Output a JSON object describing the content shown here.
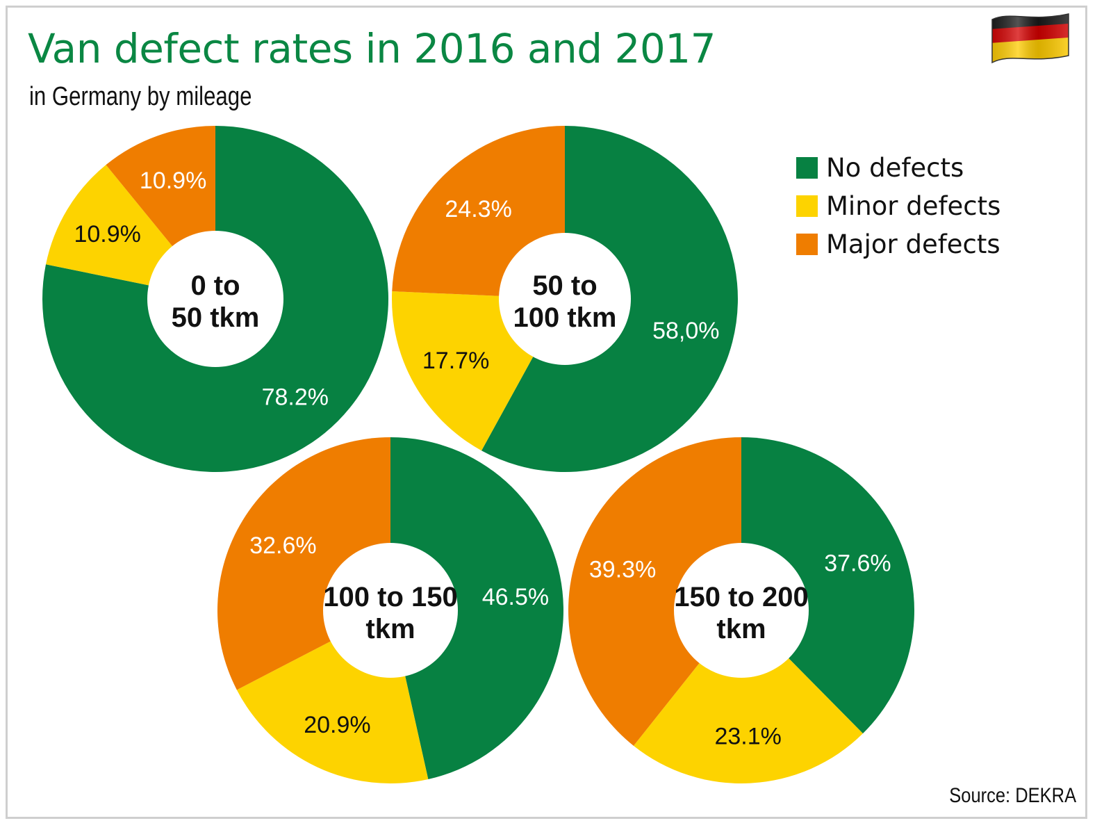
{
  "title": "Van defect rates in 2016 and 2017",
  "subtitle": "in Germany by mileage",
  "source": "Source: DEKRA",
  "flag_icon": "germany-flag-icon",
  "colors": {
    "no_defects": "#078142",
    "minor_defects": "#fdd300",
    "major_defects": "#ef7d00",
    "title": "#0a8743"
  },
  "legend": [
    {
      "label": "No defects",
      "color": "#078142"
    },
    {
      "label": "Minor defects",
      "color": "#fdd300"
    },
    {
      "label": "Major defects",
      "color": "#ef7d00"
    }
  ],
  "chart_data": [
    {
      "type": "pie",
      "title": "0 to 50 tkm",
      "center_lines": [
        "0 to",
        "50 tkm"
      ],
      "categories": [
        "No defects",
        "Minor defects",
        "Major defects"
      ],
      "values": [
        78.2,
        10.9,
        10.9
      ],
      "value_labels": [
        "78.2%",
        "10.9%",
        "10.9%"
      ]
    },
    {
      "type": "pie",
      "title": "50 to 100 tkm",
      "center_lines": [
        "50 to",
        "100 tkm"
      ],
      "categories": [
        "No defects",
        "Minor defects",
        "Major defects"
      ],
      "values": [
        58.0,
        17.7,
        24.3
      ],
      "value_labels": [
        "58,0%",
        "17.7%",
        "24.3%"
      ]
    },
    {
      "type": "pie",
      "title": "100 to 150 tkm",
      "center_lines": [
        "100 to 150",
        "tkm"
      ],
      "categories": [
        "No defects",
        "Minor defects",
        "Major defects"
      ],
      "values": [
        46.5,
        20.9,
        32.6
      ],
      "value_labels": [
        "46.5%",
        "20.9%",
        "32.6%"
      ]
    },
    {
      "type": "pie",
      "title": "150 to 200 tkm",
      "center_lines": [
        "150 to 200",
        "tkm"
      ],
      "categories": [
        "No defects",
        "Minor defects",
        "Major defects"
      ],
      "values": [
        37.6,
        23.1,
        39.3
      ],
      "value_labels": [
        "37.6%",
        "23.1%",
        "39.3%"
      ]
    }
  ]
}
